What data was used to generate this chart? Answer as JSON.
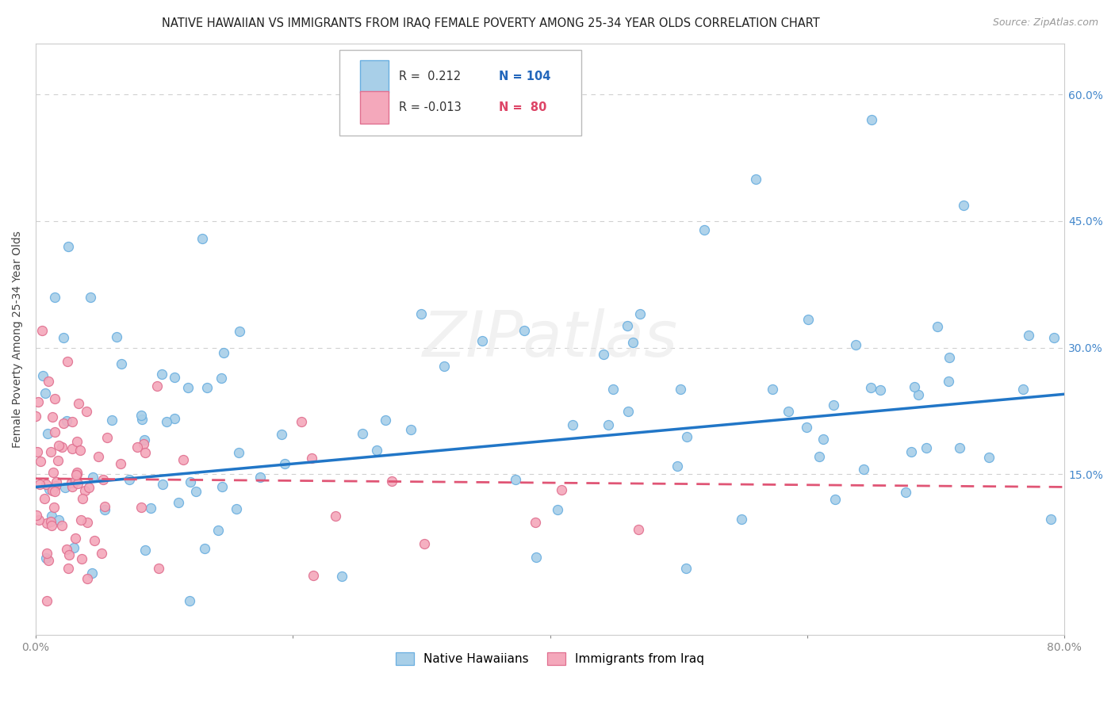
{
  "title": "NATIVE HAWAIIAN VS IMMIGRANTS FROM IRAQ FEMALE POVERTY AMONG 25-34 YEAR OLDS CORRELATION CHART",
  "source": "Source: ZipAtlas.com",
  "ylabel": "Female Poverty Among 25-34 Year Olds",
  "xmin": 0.0,
  "xmax": 0.8,
  "ymin": -0.04,
  "ymax": 0.66,
  "color_blue": "#a8cfe8",
  "color_pink": "#f4a8bb",
  "trend_blue": "#2176c7",
  "trend_pink": "#e05575",
  "grid_color": "#d0d0d0",
  "watermark": "ZIPatlas",
  "r1": 0.212,
  "n1": 104,
  "r2": -0.013,
  "n2": 80
}
